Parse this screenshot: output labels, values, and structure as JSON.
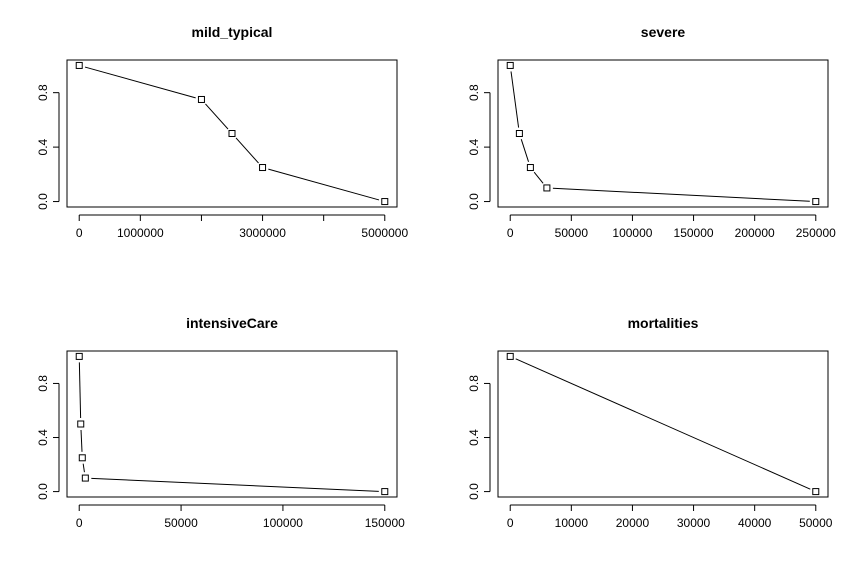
{
  "chart_data": [
    {
      "type": "line",
      "title": "mild_typical",
      "xlabel": "",
      "ylabel": "",
      "x": [
        0,
        2000000,
        2500000,
        3000000,
        5000000
      ],
      "y": [
        1.0,
        0.75,
        0.5,
        0.25,
        0.0
      ],
      "xlim": [
        -200000,
        5200000
      ],
      "ylim": [
        -0.04,
        1.04
      ],
      "xticks": [
        0,
        1000000,
        2000000,
        3000000,
        4000000,
        5000000
      ],
      "xticklabels": [
        "0",
        "1000000",
        "",
        "3000000",
        "",
        "5000000"
      ],
      "yticks": [
        0.0,
        0.4,
        0.8
      ],
      "yticklabels": [
        "0.0",
        "0.4",
        "0.8"
      ],
      "marker": "open-square",
      "grid": false,
      "legend": "none"
    },
    {
      "type": "line",
      "title": "severe",
      "xlabel": "",
      "ylabel": "",
      "x": [
        0,
        7500,
        16500,
        30000,
        250000
      ],
      "y": [
        1.0,
        0.5,
        0.25,
        0.1,
        0.0
      ],
      "xlim": [
        -10000,
        260000
      ],
      "ylim": [
        -0.04,
        1.04
      ],
      "xticks": [
        0,
        50000,
        100000,
        150000,
        200000,
        250000
      ],
      "xticklabels": [
        "0",
        "50000",
        "100000",
        "150000",
        "200000",
        "250000"
      ],
      "yticks": [
        0.0,
        0.4,
        0.8
      ],
      "yticklabels": [
        "0.0",
        "0.4",
        "0.8"
      ],
      "marker": "open-square",
      "grid": false,
      "legend": "none"
    },
    {
      "type": "line",
      "title": "intensiveCare",
      "xlabel": "",
      "ylabel": "",
      "x": [
        0,
        750,
        1500,
        3000,
        150000
      ],
      "y": [
        1.0,
        0.5,
        0.25,
        0.1,
        0.0
      ],
      "xlim": [
        -6000,
        156000
      ],
      "ylim": [
        -0.04,
        1.04
      ],
      "xticks": [
        0,
        50000,
        100000,
        150000
      ],
      "xticklabels": [
        "0",
        "50000",
        "100000",
        "150000"
      ],
      "yticks": [
        0.0,
        0.4,
        0.8
      ],
      "yticklabels": [
        "0.0",
        "0.4",
        "0.8"
      ],
      "marker": "open-square",
      "grid": false,
      "legend": "none"
    },
    {
      "type": "line",
      "title": "mortalities",
      "xlabel": "",
      "ylabel": "",
      "x": [
        0,
        50000
      ],
      "y": [
        1.0,
        0.0
      ],
      "xlim": [
        -2000,
        52000
      ],
      "ylim": [
        -0.04,
        1.04
      ],
      "xticks": [
        0,
        10000,
        20000,
        30000,
        40000,
        50000
      ],
      "xticklabels": [
        "0",
        "10000",
        "20000",
        "30000",
        "40000",
        "50000"
      ],
      "yticks": [
        0.0,
        0.4,
        0.8
      ],
      "yticklabels": [
        "0.0",
        "0.4",
        "0.8"
      ],
      "marker": "open-square",
      "grid": false,
      "legend": "none"
    }
  ]
}
